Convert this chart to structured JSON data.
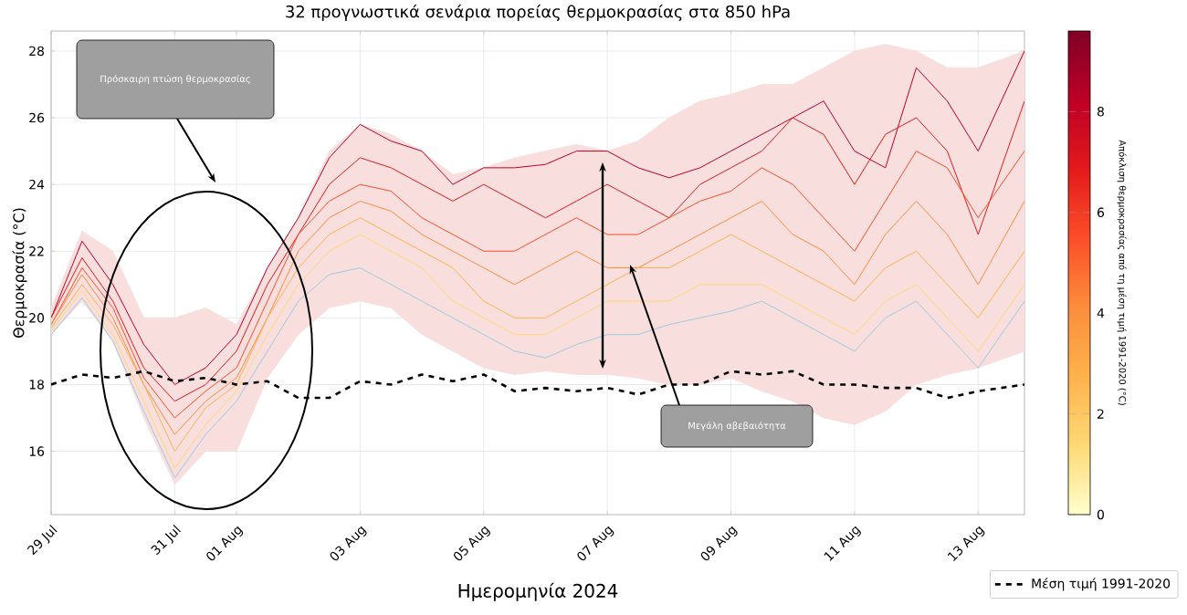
{
  "chart_data": {
    "type": "line",
    "title": "32 προγνωστικά σενάρια πορείας θερμοκρασίας στα 850 hPa",
    "xlabel": "Ημερομηνία 2024",
    "ylabel": "Θερμοκρασία (°C)",
    "clabel": "Απόκλιση θερμοκρασίας από τη μέση τιμή 1991-2020 (°C)",
    "clim": [
      0,
      9.6
    ],
    "cticks": [
      0,
      2,
      4,
      6,
      8
    ],
    "annotations": [
      "Πρόσκαιρη πτώση θερμοκρασίας",
      "Μεγάλη αβεβαιότητα"
    ],
    "x": [
      "2024-07-29T00:00",
      "2024-07-29T12:00",
      "2024-07-30T00:00",
      "2024-07-30T12:00",
      "2024-07-31T00:00",
      "2024-07-31T12:00",
      "2024-08-01T00:00",
      "2024-08-01T12:00",
      "2024-08-02T00:00",
      "2024-08-02T12:00",
      "2024-08-03T00:00",
      "2024-08-03T12:00",
      "2024-08-04T00:00",
      "2024-08-04T12:00",
      "2024-08-05T00:00",
      "2024-08-05T12:00",
      "2024-08-06T00:00",
      "2024-08-06T12:00",
      "2024-08-07T00:00",
      "2024-08-07T12:00",
      "2024-08-08T00:00",
      "2024-08-08T12:00",
      "2024-08-09T00:00",
      "2024-08-09T12:00",
      "2024-08-10T00:00",
      "2024-08-10T12:00",
      "2024-08-11T00:00",
      "2024-08-11T12:00",
      "2024-08-12T00:00",
      "2024-08-12T12:00",
      "2024-08-13T00:00",
      "2024-08-13T18:00"
    ],
    "xlim": [
      "2024-07-29T00:00",
      "2024-08-13T18:00"
    ],
    "xticks": [
      {
        "value": "2024-07-29",
        "label": "29 Jul"
      },
      {
        "value": "2024-07-31",
        "label": "31 Jul"
      },
      {
        "value": "2024-08-01",
        "label": "01 Aug"
      },
      {
        "value": "2024-08-03",
        "label": "03 Aug"
      },
      {
        "value": "2024-08-05",
        "label": "05 Aug"
      },
      {
        "value": "2024-08-07",
        "label": "07 Aug"
      },
      {
        "value": "2024-08-09",
        "label": "09 Aug"
      },
      {
        "value": "2024-08-11",
        "label": "11 Aug"
      },
      {
        "value": "2024-08-13",
        "label": "13 Aug"
      }
    ],
    "ylim": [
      14.1,
      28.6
    ],
    "yticks": [
      16,
      18,
      20,
      22,
      24,
      26,
      28
    ],
    "grid": true,
    "legend": "bottom right",
    "marker": "none",
    "series": [
      {
        "color": "#f9dede",
        "values": [
          null,
          null,
          null,
          null,
          null,
          null,
          null,
          null,
          null,
          null,
          null,
          null,
          null,
          null,
          null,
          null,
          null,
          null,
          null,
          null,
          null,
          null,
          null,
          null,
          null,
          null,
          null,
          null,
          null,
          null,
          null,
          null
        ],
        "lower": [
          19.5,
          20.5,
          19.3,
          17,
          15,
          16,
          16,
          18.2,
          19.5,
          20.3,
          20.5,
          20.3,
          19.5,
          19,
          18.5,
          18.3,
          18.4,
          18.3,
          18.3,
          18.2,
          18,
          18,
          18.2,
          17.8,
          17.5,
          17,
          16.8,
          17.2,
          18,
          18.3,
          18.5,
          19
        ],
        "upper": [
          20.3,
          22.6,
          22,
          20,
          20,
          20.3,
          19.8,
          21.5,
          23,
          25,
          25.8,
          25.5,
          25,
          24.3,
          24.5,
          24.8,
          25,
          25.2,
          25,
          25.3,
          26,
          26.5,
          26.7,
          27,
          27,
          27.5,
          28,
          28.2,
          28,
          27.5,
          27.5,
          28
        ]
      },
      {
        "color": "#bd0026",
        "values": [
          20,
          22.3,
          21,
          19.2,
          18,
          18.5,
          19.5,
          21.5,
          23,
          24.8,
          25.8,
          25.3,
          25,
          24,
          24.5,
          24.5,
          24.6,
          25,
          25,
          24.5,
          24.2,
          24.5,
          25,
          25.5,
          26,
          26.5,
          25,
          24.5,
          27.5,
          26.5,
          25,
          28
        ]
      },
      {
        "color": "#e31a1c",
        "values": [
          20,
          21.8,
          20.5,
          18.5,
          17.5,
          18,
          19,
          21,
          22.5,
          24,
          24.8,
          24.5,
          24,
          23.5,
          24,
          23.5,
          23,
          23.5,
          24,
          23.5,
          23,
          24,
          24.5,
          25,
          26,
          25.5,
          24,
          25.5,
          26,
          25,
          22.5,
          26.5
        ]
      },
      {
        "color": "#fc4e2a",
        "values": [
          19.8,
          21.5,
          20.3,
          18.2,
          17,
          17.8,
          18.5,
          20.5,
          22.5,
          23.5,
          24,
          23.8,
          23,
          22.5,
          22,
          22,
          22.5,
          23,
          22.5,
          22.5,
          23,
          23.5,
          23.8,
          24.5,
          24,
          23,
          22,
          23.5,
          25,
          24.5,
          23,
          25
        ]
      },
      {
        "color": "#fd8d3c",
        "values": [
          19.8,
          21.3,
          20,
          18,
          16.5,
          17.5,
          18.2,
          20,
          22,
          23,
          23.5,
          23.2,
          22.5,
          22,
          21.5,
          21,
          21.5,
          22,
          21.5,
          21.5,
          22,
          22.5,
          23,
          23.5,
          22.5,
          22,
          21,
          22.5,
          23.5,
          22.5,
          21,
          23.5
        ]
      },
      {
        "color": "#feb24c",
        "values": [
          19.7,
          21,
          19.8,
          18,
          16,
          17.3,
          18,
          20,
          21.5,
          22.5,
          23,
          22.5,
          22,
          21.5,
          20.5,
          20,
          20,
          20.5,
          21,
          21.5,
          21.5,
          22,
          22.5,
          22,
          21.5,
          21,
          20.5,
          21.5,
          22,
          21,
          20,
          22
        ]
      },
      {
        "color": "#fed976",
        "values": [
          19.6,
          20.8,
          19.5,
          17.5,
          15.5,
          16.8,
          17.8,
          19.5,
          21,
          22,
          22.5,
          22,
          21.5,
          20.5,
          20,
          19.5,
          19.5,
          20,
          20.5,
          20.5,
          20.5,
          21,
          21,
          21,
          20.5,
          20,
          19.5,
          20.5,
          21,
          20,
          19,
          21
        ]
      },
      {
        "color": "#9ecae1",
        "values": [
          19.5,
          20.6,
          19.3,
          17.2,
          15.2,
          16.5,
          17.5,
          19,
          20.5,
          21.3,
          21.5,
          21,
          20.5,
          20,
          19.5,
          19,
          18.8,
          19.2,
          19.5,
          19.5,
          19.8,
          20,
          20.2,
          20.5,
          20,
          19.5,
          19,
          20,
          20.5,
          19.5,
          18.5,
          20.5
        ]
      },
      {
        "name": "Μέση τιμή 1991-2020",
        "color": "#000000",
        "line_style": "dashed",
        "values": [
          18,
          18.3,
          18.2,
          18.4,
          18.1,
          18.2,
          18,
          18.1,
          17.6,
          17.6,
          18.1,
          18,
          18.3,
          18.1,
          18.3,
          17.8,
          17.9,
          17.8,
          17.9,
          17.7,
          18,
          18,
          18.4,
          18.3,
          18.4,
          18,
          18,
          17.9,
          17.9,
          17.6,
          17.8,
          18
        ]
      }
    ]
  }
}
